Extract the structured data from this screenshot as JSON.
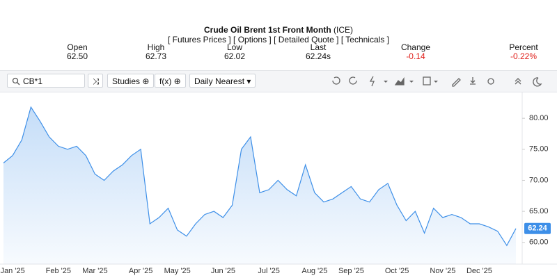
{
  "header": {
    "title": "Crude Oil Brent 1st Front Month",
    "exchange": "(ICE)",
    "links": [
      "[ Futures Prices ]",
      "[ Options ]",
      "[ Detailed Quote ]",
      "[ Technicals ]"
    ],
    "stats": [
      {
        "label": "Open",
        "value": "62.50"
      },
      {
        "label": "High",
        "value": "62.73"
      },
      {
        "label": "Low",
        "value": "62.02"
      },
      {
        "label": "Last",
        "value": "62.24s"
      },
      {
        "label": "Change",
        "value": "-0.14"
      },
      {
        "label": "Percent",
        "value": "-0.22%"
      }
    ]
  },
  "toolbar": {
    "symbol": "CB*1",
    "studies": "Studies",
    "functions": "f(x)",
    "interval": "Daily Nearest"
  },
  "chart_data": {
    "type": "area",
    "color": "#3d8fe8",
    "categories": [
      null,
      "Jan '25",
      null,
      null,
      null,
      null,
      "Feb '25",
      null,
      null,
      null,
      "Mar '25",
      null,
      null,
      null,
      null,
      "Apr '25",
      null,
      null,
      null,
      "May '25",
      null,
      null,
      null,
      null,
      "Jun '25",
      null,
      null,
      null,
      null,
      "Jul '25",
      null,
      null,
      null,
      null,
      "Aug '25",
      null,
      null,
      null,
      "Sep '25",
      null,
      null,
      null,
      null,
      "Oct '25",
      null,
      null,
      null,
      null,
      "Nov '25",
      null,
      null,
      null,
      "Dec '25",
      null,
      null,
      null,
      null
    ],
    "values": [
      72.8,
      74,
      76.5,
      81.8,
      79.5,
      77,
      75.5,
      75,
      75.5,
      74,
      71,
      70,
      71.5,
      72.5,
      74,
      75,
      63,
      64,
      65.5,
      62,
      61,
      63,
      64.5,
      65,
      64,
      66,
      75,
      77,
      68,
      68.5,
      70,
      68.5,
      67.5,
      72.5,
      68,
      66.5,
      67,
      68,
      69,
      67,
      66.5,
      68.5,
      69.5,
      66,
      63.5,
      65,
      61.5,
      65.5,
      64,
      64.5,
      64,
      63,
      63,
      62.5,
      61.8,
      59.5,
      62.24
    ],
    "ylim": [
      56.5,
      84.5
    ],
    "yticks": [
      {
        "value": 60,
        "label": "60.00"
      },
      {
        "value": 65,
        "label": "65.00"
      },
      {
        "value": 70,
        "label": "70.00"
      },
      {
        "value": 75,
        "label": "75.00"
      },
      {
        "value": 80,
        "label": "80.00"
      }
    ],
    "grid": false
  }
}
